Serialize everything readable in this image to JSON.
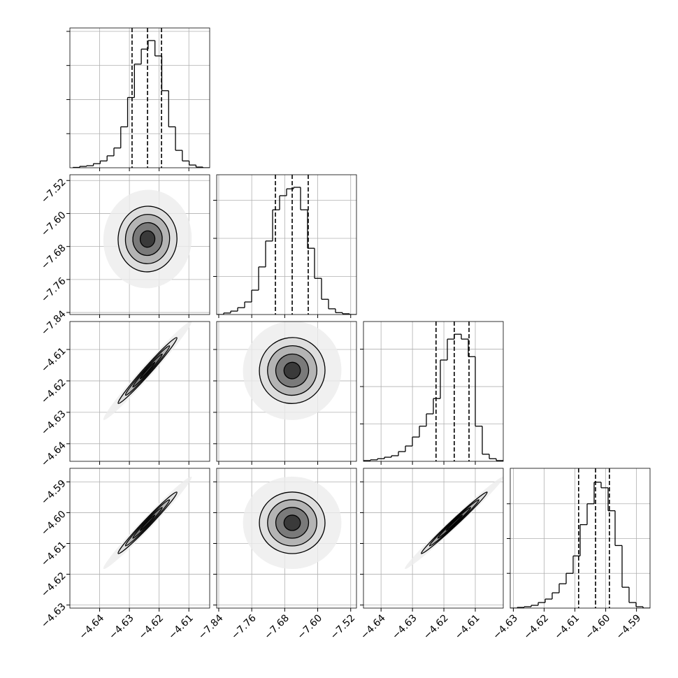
{
  "chart_data": {
    "type": "corner",
    "grid": true,
    "levels": [
      0.5,
      1,
      1.5,
      2
    ],
    "params": [
      {
        "lim": [
          -4.65,
          -4.603
        ],
        "ticks": [
          {
            "value": -4.64,
            "label": "−4.64"
          },
          {
            "value": -4.63,
            "label": "−4.63"
          },
          {
            "value": -4.62,
            "label": "−4.62"
          },
          {
            "value": -4.61,
            "label": "−4.61"
          }
        ],
        "bins": [
          -4.649,
          -4.6467,
          -4.6444,
          -4.6421,
          -4.6398,
          -4.6375,
          -4.6352,
          -4.6329,
          -4.6306,
          -4.6283,
          -4.626,
          -4.6237,
          -4.6214,
          -4.6191,
          -4.6168,
          -4.6145,
          -4.6122,
          -4.6099,
          -4.6076,
          -4.6053,
          -4.603
        ],
        "counts": [
          5,
          20,
          30,
          60,
          100,
          175,
          290,
          600,
          1030,
          1520,
          1740,
          1865,
          1640,
          1130,
          600,
          255,
          100,
          40,
          10,
          0
        ],
        "hist_ylim": [
          0,
          2050
        ],
        "hist_yticks": [
          500,
          1000,
          1500,
          2000
        ],
        "quantiles": [
          -4.6291,
          -4.6239,
          -4.6192
        ]
      },
      {
        "lim": [
          -7.845,
          -7.506
        ],
        "ticks": [
          {
            "value": -7.84,
            "label": "−7.84"
          },
          {
            "value": -7.76,
            "label": "−7.76"
          },
          {
            "value": -7.68,
            "label": "−7.68"
          },
          {
            "value": -7.6,
            "label": "−7.60"
          },
          {
            "value": -7.52,
            "label": "−7.52"
          }
        ],
        "bins": [
          -7.845,
          -7.82805,
          -7.8111,
          -7.79415,
          -7.7772,
          -7.76025,
          -7.7433,
          -7.72635,
          -7.7094,
          -7.69245,
          -7.6755,
          -7.65855,
          -7.6416,
          -7.62465,
          -7.6077,
          -7.59075,
          -7.5738,
          -7.55685,
          -7.5399,
          -7.52295,
          -7.506
        ],
        "counts": [
          0,
          20,
          45,
          90,
          165,
          320,
          625,
          965,
          1375,
          1560,
          1650,
          1670,
          1375,
          870,
          475,
          200,
          75,
          25,
          10,
          0
        ],
        "hist_ylim": [
          0,
          1835
        ],
        "hist_yticks": [
          500,
          1000,
          1500
        ],
        "quantiles": [
          -7.7026,
          -7.6619,
          -7.623
        ]
      },
      {
        "lim": [
          -4.6456,
          -4.6011
        ],
        "ticks": [
          {
            "value": -4.64,
            "label": "−4.64"
          },
          {
            "value": -4.63,
            "label": "−4.63"
          },
          {
            "value": -4.62,
            "label": "−4.62"
          },
          {
            "value": -4.61,
            "label": "−4.61"
          }
        ],
        "bins": [
          -4.6456,
          -4.643375,
          -4.64115,
          -4.638925,
          -4.6367,
          -4.634475,
          -4.63225,
          -4.630025,
          -4.6278,
          -4.625575,
          -4.62335,
          -4.621125,
          -4.6189,
          -4.616675,
          -4.61445,
          -4.612225,
          -4.61,
          -4.607775,
          -4.60555,
          -4.603325,
          -4.6011
        ],
        "counts": [
          10,
          20,
          35,
          55,
          75,
          130,
          205,
          325,
          470,
          635,
          840,
          1355,
          1635,
          1700,
          1635,
          1400,
          470,
          95,
          35,
          10
        ],
        "hist_ylim": [
          0,
          1870
        ],
        "hist_yticks": [
          500,
          1000,
          1500
        ],
        "quantiles": [
          -4.6225,
          -4.6167,
          -4.612
        ]
      },
      {
        "lim": [
          -4.631,
          -4.5856
        ],
        "ticks": [
          {
            "value": -4.63,
            "label": "−4.63"
          },
          {
            "value": -4.62,
            "label": "−4.62"
          },
          {
            "value": -4.61,
            "label": "−4.61"
          },
          {
            "value": -4.6,
            "label": "−4.60"
          },
          {
            "value": -4.59,
            "label": "−4.59"
          }
        ],
        "bins": [
          -4.631,
          -4.62873,
          -4.62646,
          -4.62419,
          -4.62192,
          -4.61965,
          -4.61738,
          -4.61511,
          -4.61284,
          -4.61057,
          -4.6083,
          -4.60603,
          -4.60376,
          -4.60149,
          -4.59922,
          -4.59695,
          -4.59468,
          -4.59241,
          -4.59014,
          -4.58787,
          -4.5856
        ],
        "counts": [
          0,
          10,
          20,
          40,
          80,
          130,
          220,
          350,
          500,
          750,
          1200,
          1500,
          1810,
          1730,
          1400,
          900,
          300,
          80,
          20,
          0
        ],
        "hist_ylim": [
          0,
          2010
        ],
        "hist_yticks": [
          500,
          1000,
          1500
        ],
        "quantiles": [
          -4.6088,
          -4.6033,
          -4.5988
        ]
      }
    ],
    "pairs": [
      {
        "x": 0,
        "y": 1,
        "rho": 0.02
      },
      {
        "x": 0,
        "y": 2,
        "rho": 0.985
      },
      {
        "x": 1,
        "y": 2,
        "rho": 0.01
      },
      {
        "x": 0,
        "y": 3,
        "rho": 0.985
      },
      {
        "x": 1,
        "y": 3,
        "rho": 0.0
      },
      {
        "x": 2,
        "y": 3,
        "rho": 0.99
      }
    ]
  }
}
